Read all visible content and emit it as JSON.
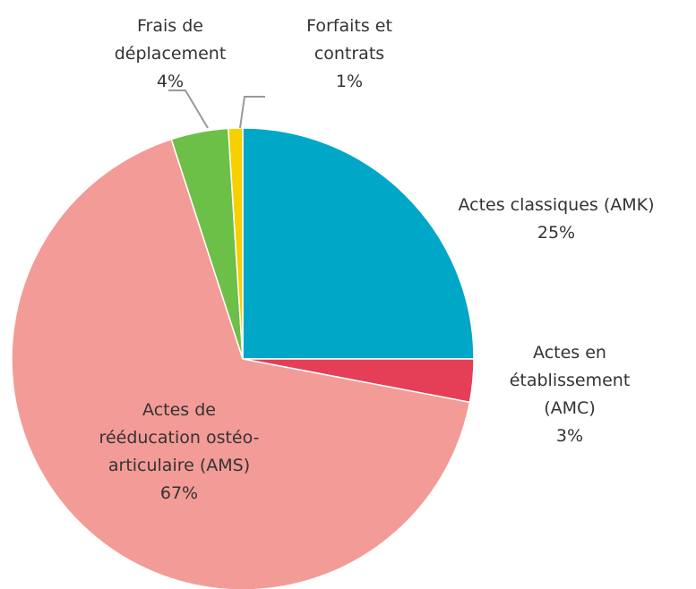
{
  "chart_data": {
    "type": "pie",
    "categories": [
      "Actes classiques (AMK)",
      "Actes en établissement (AMC)",
      "Actes de rééducation ostéo-articulaire (AMS)",
      "Frais de déplacement",
      "Forfaits et contrats"
    ],
    "values": [
      25,
      3,
      67,
      4,
      1
    ],
    "value_labels": [
      "25%",
      "3%",
      "67%",
      "4%",
      "1%"
    ],
    "colors": [
      "#00a7c7",
      "#e53e57",
      "#f39b97",
      "#6cbf47",
      "#f7d000"
    ]
  }
}
